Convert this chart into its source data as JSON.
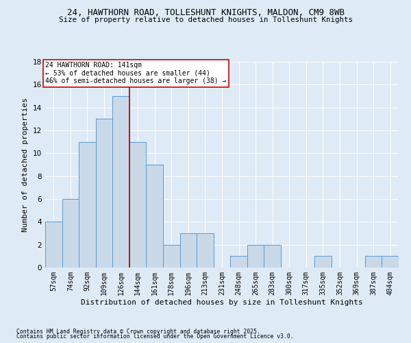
{
  "title1": "24, HAWTHORN ROAD, TOLLESHUNT KNIGHTS, MALDON, CM9 8WB",
  "title2": "Size of property relative to detached houses in Tolleshunt Knights",
  "xlabel": "Distribution of detached houses by size in Tolleshunt Knights",
  "ylabel": "Number of detached properties",
  "categories": [
    "57sqm",
    "74sqm",
    "92sqm",
    "109sqm",
    "126sqm",
    "144sqm",
    "161sqm",
    "178sqm",
    "196sqm",
    "213sqm",
    "231sqm",
    "248sqm",
    "265sqm",
    "283sqm",
    "300sqm",
    "317sqm",
    "335sqm",
    "352sqm",
    "369sqm",
    "387sqm",
    "404sqm"
  ],
  "values": [
    4,
    6,
    11,
    13,
    15,
    11,
    9,
    2,
    3,
    3,
    0,
    1,
    2,
    2,
    0,
    0,
    1,
    0,
    0,
    1,
    1
  ],
  "bar_color": "#c9d9e8",
  "bar_edge_color": "#5b9bd5",
  "ylim": [
    0,
    18
  ],
  "yticks": [
    0,
    2,
    4,
    6,
    8,
    10,
    12,
    14,
    16,
    18
  ],
  "subject_line_color": "#cc0000",
  "annotation_text": "24 HAWTHORN ROAD: 141sqm\n← 53% of detached houses are smaller (44)\n46% of semi-detached houses are larger (38) →",
  "annotation_box_color": "#ffffff",
  "annotation_box_edge": "#cc0000",
  "footer1": "Contains HM Land Registry data © Crown copyright and database right 2025.",
  "footer2": "Contains public sector information licensed under the Open Government Licence v3.0.",
  "background_color": "#deeaf5",
  "grid_color": "#ffffff"
}
